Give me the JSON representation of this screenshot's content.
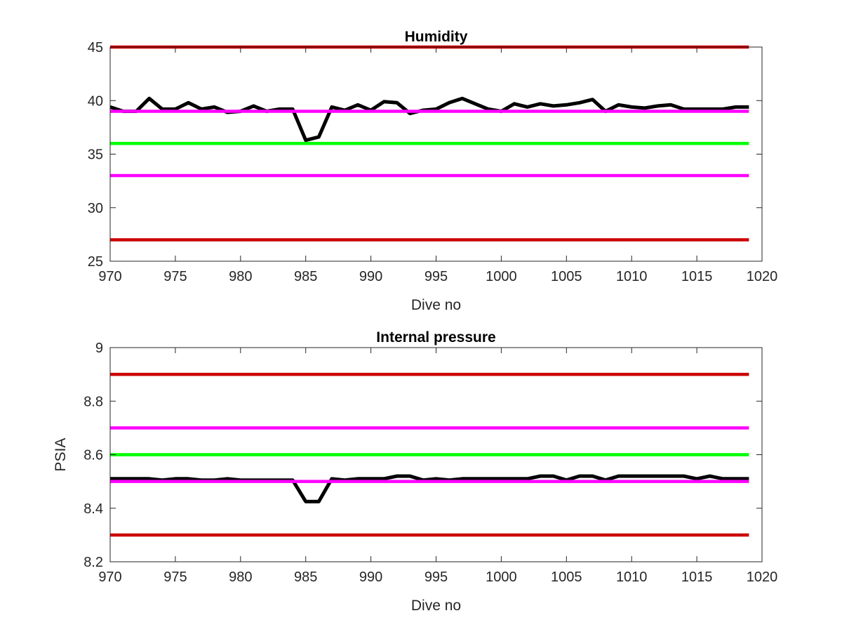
{
  "chart_data": [
    {
      "type": "line",
      "title": "Humidity",
      "xlabel": "Dive no",
      "ylabel": "",
      "xlim": [
        970,
        1020
      ],
      "ylim": [
        25,
        45
      ],
      "xticks": [
        970,
        975,
        980,
        985,
        990,
        995,
        1000,
        1005,
        1010,
        1015,
        1020
      ],
      "yticks": [
        25,
        30,
        35,
        40,
        45
      ],
      "grid": false,
      "legend": "none",
      "series": [
        {
          "color": "#000000",
          "x": [
            970,
            971,
            972,
            973,
            974,
            975,
            976,
            977,
            978,
            979,
            980,
            981,
            982,
            983,
            984,
            985,
            986,
            987,
            988,
            989,
            990,
            991,
            992,
            993,
            994,
            995,
            996,
            997,
            998,
            999,
            1000,
            1001,
            1002,
            1003,
            1004,
            1005,
            1006,
            1007,
            1008,
            1009,
            1010,
            1011,
            1012,
            1013,
            1014,
            1015,
            1016,
            1017,
            1018,
            1019
          ],
          "y": [
            39.4,
            39.0,
            39.0,
            40.2,
            39.2,
            39.2,
            39.8,
            39.2,
            39.4,
            38.9,
            39.0,
            39.5,
            39.0,
            39.2,
            39.2,
            36.3,
            36.6,
            39.4,
            39.1,
            39.6,
            39.1,
            39.9,
            39.8,
            38.8,
            39.1,
            39.2,
            39.8,
            40.2,
            39.7,
            39.2,
            39.0,
            39.7,
            39.4,
            39.7,
            39.5,
            39.6,
            39.8,
            40.1,
            39.0,
            39.6,
            39.4,
            39.3,
            39.5,
            39.6,
            39.2,
            39.2,
            39.2,
            39.2,
            39.4,
            39.4
          ]
        },
        {
          "color": "#cc0000",
          "x": [
            970,
            1019
          ],
          "y": [
            45,
            45
          ]
        },
        {
          "color": "#ff00ff",
          "x": [
            970,
            1019
          ],
          "y": [
            39,
            39
          ]
        },
        {
          "color": "#00ff00",
          "x": [
            970,
            1019
          ],
          "y": [
            36,
            36
          ]
        },
        {
          "color": "#ff00ff",
          "x": [
            970,
            1019
          ],
          "y": [
            33,
            33
          ]
        },
        {
          "color": "#cc0000",
          "x": [
            970,
            1019
          ],
          "y": [
            27,
            27
          ]
        }
      ]
    },
    {
      "type": "line",
      "title": "Internal pressure",
      "xlabel": "Dive no",
      "ylabel": "PSIA",
      "xlim": [
        970,
        1020
      ],
      "ylim": [
        8.2,
        9
      ],
      "xticks": [
        970,
        975,
        980,
        985,
        990,
        995,
        1000,
        1005,
        1010,
        1015,
        1020
      ],
      "yticks": [
        8.2,
        8.4,
        8.6,
        8.8,
        9
      ],
      "ytick_labels": [
        "8.2",
        "8.4",
        "8.6",
        "8.8",
        "9"
      ],
      "grid": false,
      "legend": "none",
      "series": [
        {
          "color": "#000000",
          "x": [
            970,
            971,
            972,
            973,
            974,
            975,
            976,
            977,
            978,
            979,
            980,
            981,
            982,
            983,
            984,
            985,
            986,
            987,
            988,
            989,
            990,
            991,
            992,
            993,
            994,
            995,
            996,
            997,
            998,
            999,
            1000,
            1001,
            1002,
            1003,
            1004,
            1005,
            1006,
            1007,
            1008,
            1009,
            1010,
            1011,
            1012,
            1013,
            1014,
            1015,
            1016,
            1017,
            1018,
            1019
          ],
          "y": [
            8.51,
            8.51,
            8.51,
            8.51,
            8.505,
            8.51,
            8.51,
            8.505,
            8.505,
            8.51,
            8.505,
            8.505,
            8.505,
            8.505,
            8.505,
            8.425,
            8.425,
            8.51,
            8.505,
            8.51,
            8.51,
            8.51,
            8.52,
            8.52,
            8.505,
            8.51,
            8.505,
            8.51,
            8.51,
            8.51,
            8.51,
            8.51,
            8.51,
            8.52,
            8.52,
            8.505,
            8.52,
            8.52,
            8.505,
            8.52,
            8.52,
            8.52,
            8.52,
            8.52,
            8.52,
            8.51,
            8.52,
            8.51,
            8.51,
            8.51
          ]
        },
        {
          "color": "#cc0000",
          "x": [
            970,
            1019
          ],
          "y": [
            8.9,
            8.9
          ]
        },
        {
          "color": "#ff00ff",
          "x": [
            970,
            1019
          ],
          "y": [
            8.7,
            8.7
          ]
        },
        {
          "color": "#00ff00",
          "x": [
            970,
            1019
          ],
          "y": [
            8.6,
            8.6
          ]
        },
        {
          "color": "#ff00ff",
          "x": [
            970,
            1019
          ],
          "y": [
            8.5,
            8.5
          ]
        },
        {
          "color": "#cc0000",
          "x": [
            970,
            1019
          ],
          "y": [
            8.3,
            8.3
          ]
        }
      ]
    }
  ]
}
